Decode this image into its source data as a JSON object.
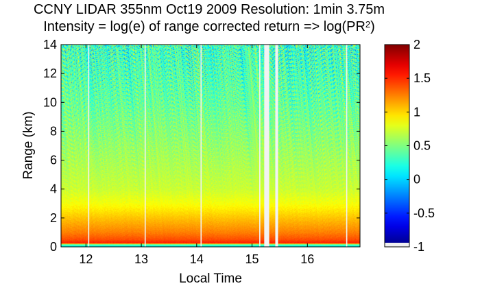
{
  "chart_data": {
    "type": "heatmap",
    "title": "CCNY LIDAR 355nm Oct19 2009 Resolution: 1min 3.75m",
    "subtitle_main": "Intensity = log(e) of range corrected return => log(PR",
    "subtitle_sup": "2",
    "subtitle_end": ")",
    "xlabel": "Local Time",
    "ylabel": "Range (km)",
    "xlim": [
      11.55,
      16.95
    ],
    "ylim": [
      0,
      14
    ],
    "x_ticks": [
      "12",
      "13",
      "14",
      "15",
      "16"
    ],
    "x_tick_values": [
      12,
      13,
      14,
      15,
      16
    ],
    "y_ticks": [
      "0",
      "2",
      "4",
      "6",
      "8",
      "10",
      "12",
      "14"
    ],
    "y_tick_values": [
      0,
      2,
      4,
      6,
      8,
      10,
      12,
      14
    ],
    "colorbar": {
      "ticks": [
        "2",
        "1.5",
        "1",
        "0.5",
        "0",
        "-0.5",
        "-1"
      ],
      "tick_values": [
        2,
        1.5,
        1,
        0.5,
        0,
        -0.5,
        -1
      ],
      "range": [
        -1,
        2
      ],
      "colormap": "jet"
    },
    "profile": {
      "description_values_by_range_km": [
        {
          "range": 0.0,
          "value": 0.15
        },
        {
          "range": 0.15,
          "value": 0.3
        },
        {
          "range": 0.25,
          "value": 1.55
        },
        {
          "range": 0.5,
          "value": 1.4
        },
        {
          "range": 1.0,
          "value": 1.25
        },
        {
          "range": 2.0,
          "value": 1.05
        },
        {
          "range": 3.0,
          "value": 0.85
        },
        {
          "range": 4.0,
          "value": 0.72
        },
        {
          "range": 6.0,
          "value": 0.62
        },
        {
          "range": 8.0,
          "value": 0.52
        },
        {
          "range": 10.0,
          "value": 0.42
        },
        {
          "range": 12.0,
          "value": 0.35
        },
        {
          "range": 14.0,
          "value": 0.3
        }
      ]
    },
    "data_gaps_local_time": [
      {
        "start": 12.04,
        "end": 12.06
      },
      {
        "start": 13.06,
        "end": 13.08
      },
      {
        "start": 14.07,
        "end": 14.09
      },
      {
        "start": 15.13,
        "end": 15.15
      },
      {
        "start": 15.22,
        "end": 15.31
      },
      {
        "start": 15.42,
        "end": 15.47
      },
      {
        "start": 16.7,
        "end": 16.72
      }
    ]
  }
}
